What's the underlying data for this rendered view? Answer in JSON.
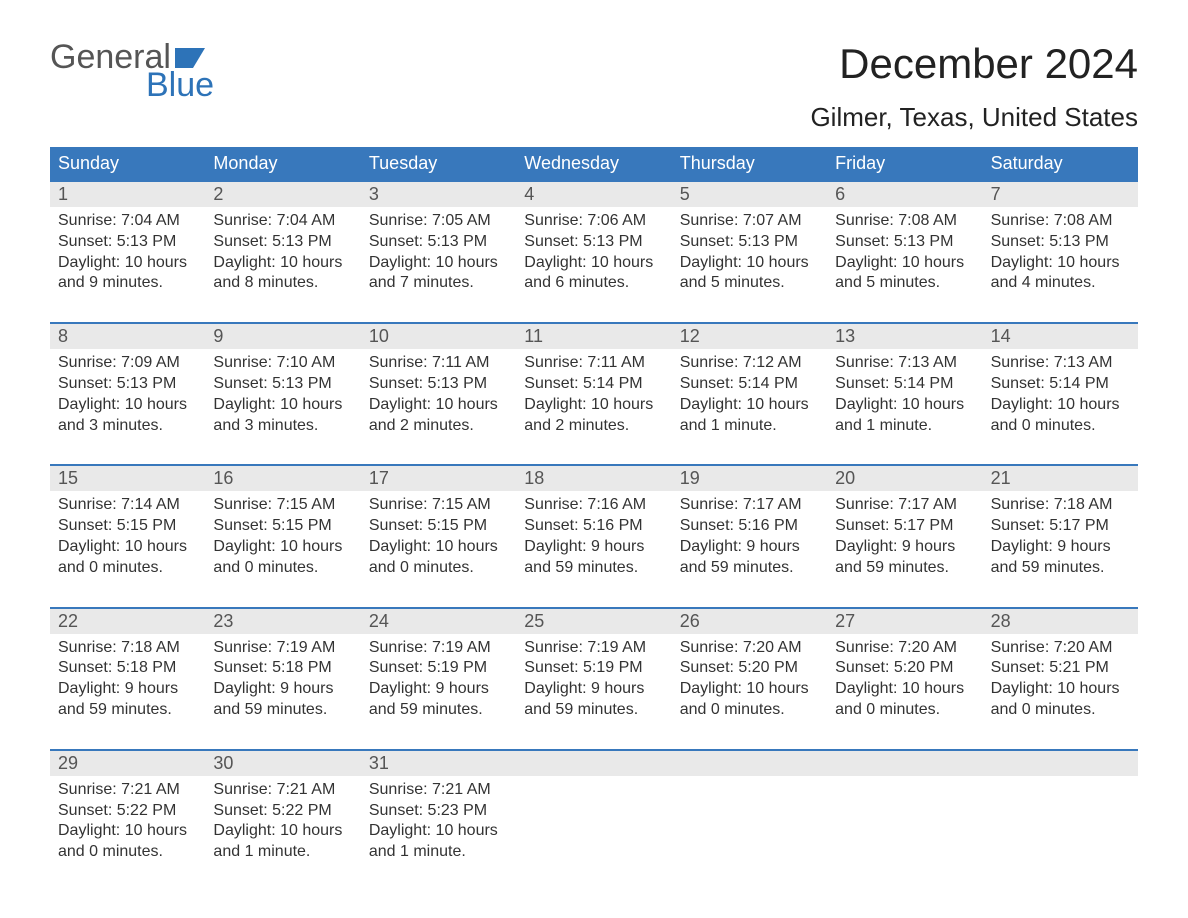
{
  "logo": {
    "word1": "General",
    "word2": "Blue"
  },
  "title": "December 2024",
  "location": "Gilmer, Texas, United States",
  "colors": {
    "header_bg": "#3878bc",
    "header_text": "#ffffff",
    "daynum_bg": "#e9e9e9",
    "week_border": "#3878bc",
    "logo_gray": "#555555",
    "logo_blue": "#2d73b8",
    "page_bg": "#ffffff",
    "body_text": "#333333"
  },
  "typography": {
    "title_fontsize": 42,
    "location_fontsize": 26,
    "dow_fontsize": 18,
    "daynum_fontsize": 18,
    "body_fontsize": 16,
    "logo_fontsize": 34
  },
  "columns": [
    "Sunday",
    "Monday",
    "Tuesday",
    "Wednesday",
    "Thursday",
    "Friday",
    "Saturday"
  ],
  "weeks": [
    [
      {
        "n": "1",
        "sr": "Sunrise: 7:04 AM",
        "ss": "Sunset: 5:13 PM",
        "d1": "Daylight: 10 hours",
        "d2": "and 9 minutes."
      },
      {
        "n": "2",
        "sr": "Sunrise: 7:04 AM",
        "ss": "Sunset: 5:13 PM",
        "d1": "Daylight: 10 hours",
        "d2": "and 8 minutes."
      },
      {
        "n": "3",
        "sr": "Sunrise: 7:05 AM",
        "ss": "Sunset: 5:13 PM",
        "d1": "Daylight: 10 hours",
        "d2": "and 7 minutes."
      },
      {
        "n": "4",
        "sr": "Sunrise: 7:06 AM",
        "ss": "Sunset: 5:13 PM",
        "d1": "Daylight: 10 hours",
        "d2": "and 6 minutes."
      },
      {
        "n": "5",
        "sr": "Sunrise: 7:07 AM",
        "ss": "Sunset: 5:13 PM",
        "d1": "Daylight: 10 hours",
        "d2": "and 5 minutes."
      },
      {
        "n": "6",
        "sr": "Sunrise: 7:08 AM",
        "ss": "Sunset: 5:13 PM",
        "d1": "Daylight: 10 hours",
        "d2": "and 5 minutes."
      },
      {
        "n": "7",
        "sr": "Sunrise: 7:08 AM",
        "ss": "Sunset: 5:13 PM",
        "d1": "Daylight: 10 hours",
        "d2": "and 4 minutes."
      }
    ],
    [
      {
        "n": "8",
        "sr": "Sunrise: 7:09 AM",
        "ss": "Sunset: 5:13 PM",
        "d1": "Daylight: 10 hours",
        "d2": "and 3 minutes."
      },
      {
        "n": "9",
        "sr": "Sunrise: 7:10 AM",
        "ss": "Sunset: 5:13 PM",
        "d1": "Daylight: 10 hours",
        "d2": "and 3 minutes."
      },
      {
        "n": "10",
        "sr": "Sunrise: 7:11 AM",
        "ss": "Sunset: 5:13 PM",
        "d1": "Daylight: 10 hours",
        "d2": "and 2 minutes."
      },
      {
        "n": "11",
        "sr": "Sunrise: 7:11 AM",
        "ss": "Sunset: 5:14 PM",
        "d1": "Daylight: 10 hours",
        "d2": "and 2 minutes."
      },
      {
        "n": "12",
        "sr": "Sunrise: 7:12 AM",
        "ss": "Sunset: 5:14 PM",
        "d1": "Daylight: 10 hours",
        "d2": "and 1 minute."
      },
      {
        "n": "13",
        "sr": "Sunrise: 7:13 AM",
        "ss": "Sunset: 5:14 PM",
        "d1": "Daylight: 10 hours",
        "d2": "and 1 minute."
      },
      {
        "n": "14",
        "sr": "Sunrise: 7:13 AM",
        "ss": "Sunset: 5:14 PM",
        "d1": "Daylight: 10 hours",
        "d2": "and 0 minutes."
      }
    ],
    [
      {
        "n": "15",
        "sr": "Sunrise: 7:14 AM",
        "ss": "Sunset: 5:15 PM",
        "d1": "Daylight: 10 hours",
        "d2": "and 0 minutes."
      },
      {
        "n": "16",
        "sr": "Sunrise: 7:15 AM",
        "ss": "Sunset: 5:15 PM",
        "d1": "Daylight: 10 hours",
        "d2": "and 0 minutes."
      },
      {
        "n": "17",
        "sr": "Sunrise: 7:15 AM",
        "ss": "Sunset: 5:15 PM",
        "d1": "Daylight: 10 hours",
        "d2": "and 0 minutes."
      },
      {
        "n": "18",
        "sr": "Sunrise: 7:16 AM",
        "ss": "Sunset: 5:16 PM",
        "d1": "Daylight: 9 hours",
        "d2": "and 59 minutes."
      },
      {
        "n": "19",
        "sr": "Sunrise: 7:17 AM",
        "ss": "Sunset: 5:16 PM",
        "d1": "Daylight: 9 hours",
        "d2": "and 59 minutes."
      },
      {
        "n": "20",
        "sr": "Sunrise: 7:17 AM",
        "ss": "Sunset: 5:17 PM",
        "d1": "Daylight: 9 hours",
        "d2": "and 59 minutes."
      },
      {
        "n": "21",
        "sr": "Sunrise: 7:18 AM",
        "ss": "Sunset: 5:17 PM",
        "d1": "Daylight: 9 hours",
        "d2": "and 59 minutes."
      }
    ],
    [
      {
        "n": "22",
        "sr": "Sunrise: 7:18 AM",
        "ss": "Sunset: 5:18 PM",
        "d1": "Daylight: 9 hours",
        "d2": "and 59 minutes."
      },
      {
        "n": "23",
        "sr": "Sunrise: 7:19 AM",
        "ss": "Sunset: 5:18 PM",
        "d1": "Daylight: 9 hours",
        "d2": "and 59 minutes."
      },
      {
        "n": "24",
        "sr": "Sunrise: 7:19 AM",
        "ss": "Sunset: 5:19 PM",
        "d1": "Daylight: 9 hours",
        "d2": "and 59 minutes."
      },
      {
        "n": "25",
        "sr": "Sunrise: 7:19 AM",
        "ss": "Sunset: 5:19 PM",
        "d1": "Daylight: 9 hours",
        "d2": "and 59 minutes."
      },
      {
        "n": "26",
        "sr": "Sunrise: 7:20 AM",
        "ss": "Sunset: 5:20 PM",
        "d1": "Daylight: 10 hours",
        "d2": "and 0 minutes."
      },
      {
        "n": "27",
        "sr": "Sunrise: 7:20 AM",
        "ss": "Sunset: 5:20 PM",
        "d1": "Daylight: 10 hours",
        "d2": "and 0 minutes."
      },
      {
        "n": "28",
        "sr": "Sunrise: 7:20 AM",
        "ss": "Sunset: 5:21 PM",
        "d1": "Daylight: 10 hours",
        "d2": "and 0 minutes."
      }
    ],
    [
      {
        "n": "29",
        "sr": "Sunrise: 7:21 AM",
        "ss": "Sunset: 5:22 PM",
        "d1": "Daylight: 10 hours",
        "d2": "and 0 minutes."
      },
      {
        "n": "30",
        "sr": "Sunrise: 7:21 AM",
        "ss": "Sunset: 5:22 PM",
        "d1": "Daylight: 10 hours",
        "d2": "and 1 minute."
      },
      {
        "n": "31",
        "sr": "Sunrise: 7:21 AM",
        "ss": "Sunset: 5:23 PM",
        "d1": "Daylight: 10 hours",
        "d2": "and 1 minute."
      },
      null,
      null,
      null,
      null
    ]
  ]
}
